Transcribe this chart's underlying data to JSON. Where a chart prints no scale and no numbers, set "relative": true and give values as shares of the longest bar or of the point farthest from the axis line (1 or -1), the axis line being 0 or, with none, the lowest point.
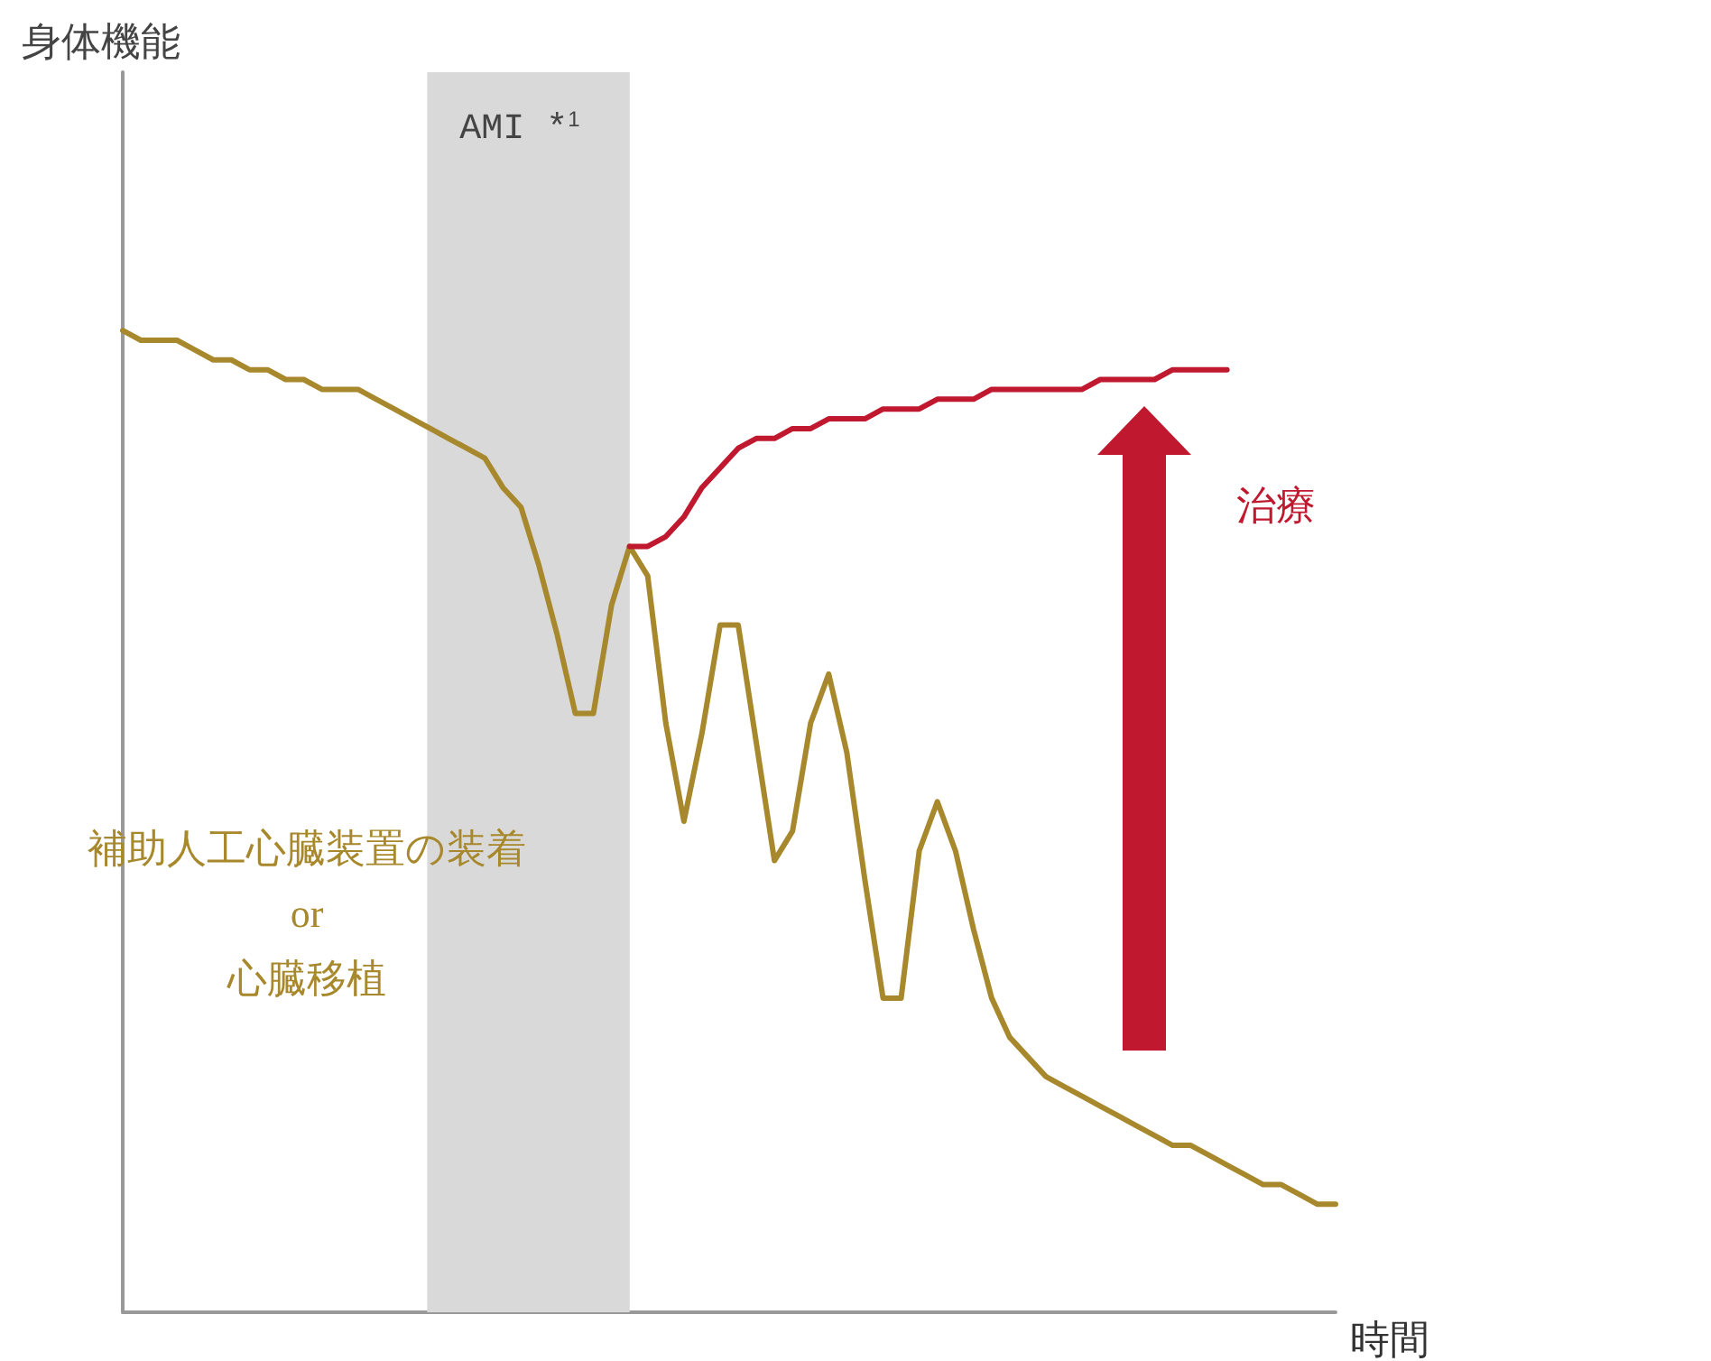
{
  "chart_data": {
    "type": "line",
    "relative": true,
    "xlabel": "時間",
    "grid": false,
    "legend": false,
    "marker": "none",
    "line_style": "solid",
    "categories": [
      null,
      null,
      null,
      null,
      null,
      null,
      null,
      null,
      null,
      null,
      null,
      null,
      null,
      null,
      null,
      null,
      null,
      null,
      null,
      null,
      null,
      null,
      null,
      null,
      null,
      null,
      null,
      null,
      null,
      null,
      null,
      null,
      null,
      null,
      null,
      null,
      null,
      null,
      null,
      null,
      null,
      null,
      null,
      null,
      null,
      null,
      null,
      null,
      null,
      null,
      null,
      null,
      null,
      null,
      null,
      null,
      null,
      null,
      null,
      null,
      null,
      null,
      null,
      null,
      null,
      null,
      null,
      null
    ],
    "annotations": [
      "身体機能",
      "AMI *$^{1}$"
    ],
    "series": [
      {
        "name": "補助人工心臓装置の装着\nor\n心臓移植",
        "color": "#a8882c",
        "values": [
          1.0,
          0.99,
          0.99,
          0.99,
          0.98,
          0.97,
          0.97,
          0.96,
          0.96,
          0.95,
          0.95,
          0.94,
          0.94,
          0.94,
          0.93,
          0.92,
          0.91,
          0.9,
          0.89,
          0.88,
          0.87,
          0.84,
          0.82,
          0.76,
          0.69,
          0.61,
          0.61,
          0.72,
          0.78,
          0.75,
          0.6,
          0.5,
          0.59,
          0.7,
          0.7,
          0.58,
          0.46,
          0.49,
          0.6,
          0.65,
          0.57,
          0.44,
          0.32,
          0.32,
          0.47,
          0.52,
          0.47,
          0.39,
          0.32,
          0.28,
          0.26,
          0.24,
          0.23,
          0.22,
          0.21,
          0.2,
          0.19,
          0.18,
          0.17,
          0.17,
          0.16,
          0.15,
          0.14,
          0.13,
          0.13,
          0.12,
          0.11,
          0.11
        ]
      },
      {
        "name": "治療",
        "color": "#c0182e",
        "values": [
          null,
          null,
          null,
          null,
          null,
          null,
          null,
          null,
          null,
          null,
          null,
          null,
          null,
          null,
          null,
          null,
          null,
          null,
          null,
          null,
          null,
          null,
          null,
          null,
          null,
          null,
          null,
          null,
          0.78,
          0.78,
          0.79,
          0.81,
          0.84,
          0.86,
          0.88,
          0.89,
          0.89,
          0.9,
          0.9,
          0.91,
          0.91,
          0.91,
          0.92,
          0.92,
          0.92,
          0.93,
          0.93,
          0.93,
          0.94,
          0.94,
          0.94,
          0.94,
          0.94,
          0.94,
          0.95,
          0.95,
          0.95,
          0.95,
          0.96,
          0.96,
          0.96,
          0.96,
          null,
          null,
          null,
          null,
          null,
          null
        ]
      }
    ]
  }
}
